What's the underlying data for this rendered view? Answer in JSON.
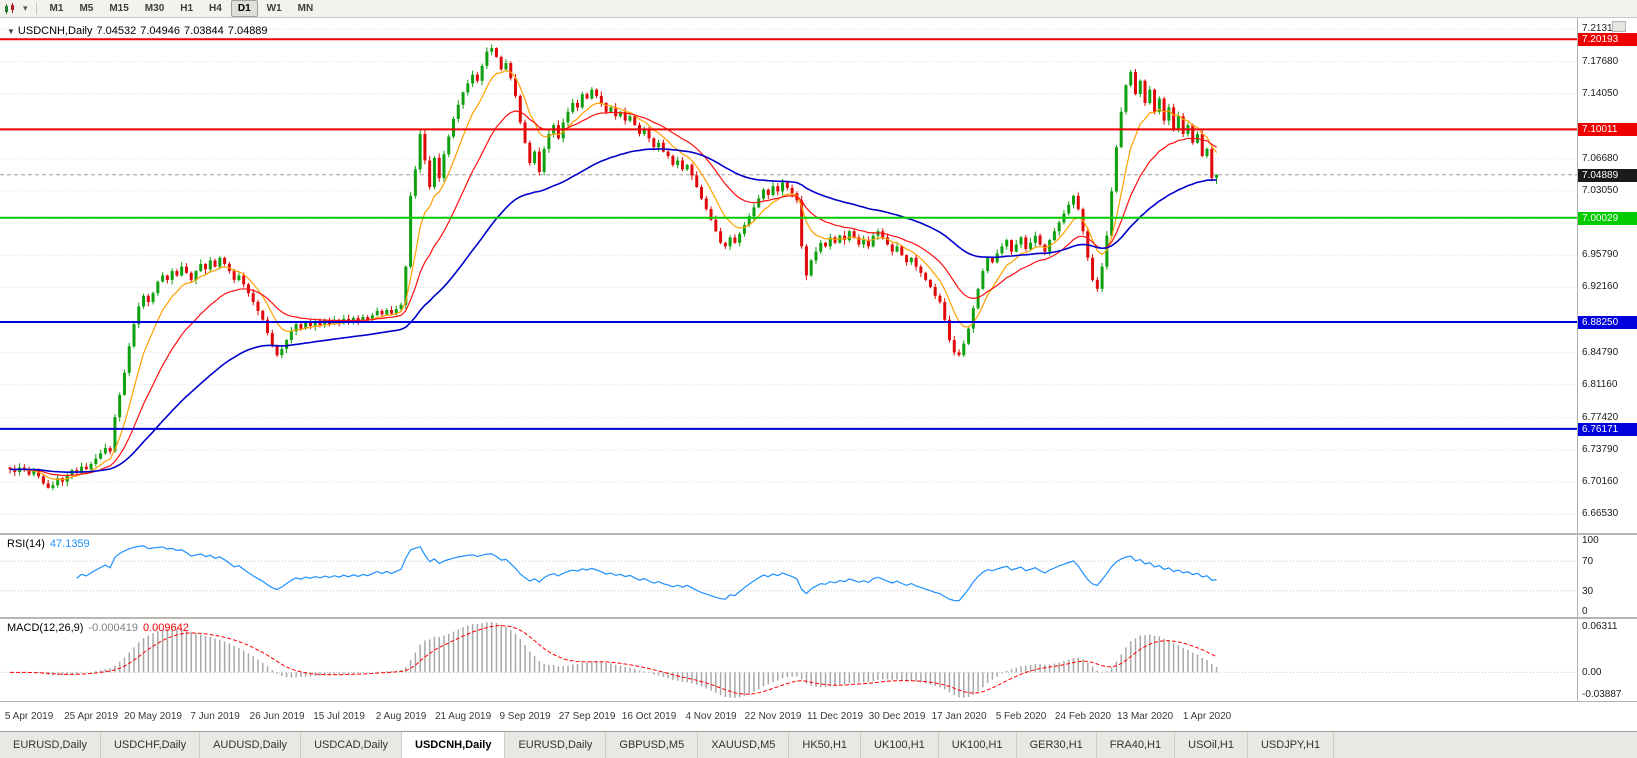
{
  "toolbar": {
    "timeframes": [
      "M1",
      "M5",
      "M15",
      "M30",
      "H1",
      "H4",
      "D1",
      "W1",
      "MN"
    ],
    "active_timeframe": "D1"
  },
  "chart_data": {
    "type": "candlestick",
    "symbol": "USDCNH",
    "timeframe": "Daily",
    "title": "USDCNH,Daily",
    "ohlc_labels": {
      "open": "7.04532",
      "high": "7.04946",
      "low": "7.03844",
      "close": "7.04889"
    },
    "last_ohlc": [
      7.04532,
      7.04946,
      7.03844,
      7.04889
    ],
    "closes": [
      6.716,
      6.713,
      6.718,
      6.715,
      6.71,
      6.714,
      6.708,
      6.7,
      6.695,
      6.698,
      6.706,
      6.702,
      6.709,
      6.715,
      6.712,
      6.719,
      6.716,
      6.722,
      6.728,
      6.734,
      6.74,
      6.736,
      6.775,
      6.8,
      6.825,
      6.855,
      6.88,
      6.9,
      6.912,
      6.905,
      6.915,
      6.928,
      6.935,
      6.93,
      6.94,
      6.935,
      6.945,
      6.938,
      6.93,
      6.94,
      6.948,
      6.942,
      6.952,
      6.945,
      6.955,
      6.948,
      6.94,
      6.93,
      6.935,
      6.925,
      6.915,
      6.905,
      6.895,
      6.885,
      6.87,
      6.855,
      6.845,
      6.852,
      6.862,
      6.872,
      6.88,
      6.875,
      6.882,
      6.878,
      6.883,
      6.879,
      6.884,
      6.88,
      6.885,
      6.881,
      6.886,
      6.882,
      6.887,
      6.883,
      6.888,
      6.885,
      6.89,
      6.895,
      6.891,
      6.896,
      6.892,
      6.897,
      6.902,
      6.945,
      7.025,
      7.055,
      7.095,
      7.065,
      7.035,
      7.068,
      7.045,
      7.072,
      7.092,
      7.112,
      7.128,
      7.142,
      7.152,
      7.162,
      7.155,
      7.172,
      7.188,
      7.192,
      7.182,
      7.168,
      7.175,
      7.158,
      7.138,
      7.108,
      7.085,
      7.062,
      7.075,
      7.052,
      7.078,
      7.095,
      7.105,
      7.09,
      7.108,
      7.12,
      7.13,
      7.125,
      7.14,
      7.135,
      7.145,
      7.138,
      7.13,
      7.12,
      7.125,
      7.115,
      7.12,
      7.11,
      7.115,
      7.105,
      7.095,
      7.1,
      7.09,
      7.08,
      7.085,
      7.075,
      7.07,
      7.06,
      7.065,
      7.055,
      7.06,
      7.048,
      7.035,
      7.022,
      7.01,
      6.998,
      6.985,
      6.972,
      6.968,
      6.978,
      6.972,
      6.982,
      6.992,
      7.002,
      7.012,
      7.022,
      7.032,
      7.026,
      7.036,
      7.03,
      7.04,
      7.034,
      7.028,
      7.02,
      6.968,
      6.935,
      6.952,
      6.962,
      6.972,
      6.968,
      6.978,
      6.972,
      6.98,
      6.975,
      6.985,
      6.978,
      6.97,
      6.975,
      6.968,
      6.98,
      6.985,
      6.978,
      6.97,
      6.962,
      6.968,
      6.958,
      6.95,
      6.955,
      6.945,
      6.938,
      6.93,
      6.922,
      6.912,
      6.905,
      6.885,
      6.862,
      6.848,
      6.845,
      6.858,
      6.875,
      6.898,
      6.92,
      6.94,
      6.955,
      6.95,
      6.96,
      6.968,
      6.975,
      6.962,
      6.97,
      6.978,
      6.965,
      6.972,
      6.98,
      6.97,
      6.962,
      6.975,
      6.985,
      6.995,
      7.005,
      7.015,
      7.025,
      7.01,
      6.985,
      6.955,
      6.93,
      6.92,
      6.945,
      6.98,
      7.03,
      7.08,
      7.12,
      7.15,
      7.165,
      7.14,
      7.155,
      7.13,
      7.145,
      7.12,
      7.135,
      7.11,
      7.125,
      7.1,
      7.115,
      7.095,
      7.105,
      7.085,
      7.095,
      7.07,
      7.078,
      7.045,
      7.04889
    ],
    "x_labels": [
      "5 Apr 2019",
      "25 Apr 2019",
      "20 May 2019",
      "7 Jun 2019",
      "26 Jun 2019",
      "15 Jul 2019",
      "2 Aug 2019",
      "21 Aug 2019",
      "9 Sep 2019",
      "27 Sep 2019",
      "16 Oct 2019",
      "4 Nov 2019",
      "22 Nov 2019",
      "11 Dec 2019",
      "30 Dec 2019",
      "17 Jan 2020",
      "5 Feb 2020",
      "24 Feb 2020",
      "13 Mar 2020",
      "1 Apr 2020"
    ],
    "x_label_first_index": 4,
    "x_label_step": 13,
    "price_axis": {
      "min": 6.644,
      "max": 7.226,
      "ticks": [
        "7.21310",
        "7.17680",
        "7.14050",
        "7.06680",
        "7.03050",
        "6.99420",
        "6.95790",
        "6.92160",
        "6.84790",
        "6.81160",
        "6.77420",
        "6.73790",
        "6.70160",
        "6.66530"
      ]
    },
    "levels": [
      {
        "value": 7.20193,
        "label": "7.20193",
        "color": "#ee0000"
      },
      {
        "value": 7.10011,
        "label": "7.10011",
        "color": "#ee0000"
      },
      {
        "value": 7.00029,
        "label": "7.00029",
        "color": "#00cc00"
      },
      {
        "value": 6.8825,
        "label": "6.88250",
        "color": "#0000dd"
      },
      {
        "value": 6.76171,
        "label": "6.76171",
        "color": "#0000dd"
      }
    ],
    "current": {
      "value": 7.04889,
      "label": "7.04889",
      "badge_color": "#1a1a1a"
    },
    "candle_colors": {
      "up": "#0fa00f",
      "down": "#e00808"
    },
    "moving_averages": [
      {
        "period": 8,
        "color": "#ffa000",
        "width": 1.2
      },
      {
        "period": 20,
        "color": "#ff1010",
        "width": 1.2
      },
      {
        "period": 55,
        "color": "#0000cd",
        "width": 1.6
      }
    ],
    "indicators": [
      {
        "name": "RSI",
        "label": "RSI(14)",
        "value": "47.1359",
        "color": "#1e90ff",
        "range": [
          0,
          100
        ],
        "axis_ticks": [
          "100",
          "70",
          "30",
          "0"
        ],
        "guides": [
          70,
          30
        ]
      },
      {
        "name": "MACD",
        "label": "MACD(12,26,9)",
        "main_value": "-0.000419",
        "signal_value": "0.009642",
        "main_color": "#a8a8a8",
        "signal_color": "#ff0000",
        "axis_ticks": [
          "0.06311",
          "0.00",
          "-0.03887"
        ]
      }
    ]
  },
  "tabbar": {
    "tabs": [
      "EURUSD,Daily",
      "USDCHF,Daily",
      "AUDUSD,Daily",
      "USDCAD,Daily",
      "USDCNH,Daily",
      "EURUSD,Daily",
      "GBPUSD,M5",
      "XAUUSD,M5",
      "HK50,H1",
      "UK100,H1",
      "UK100,H1",
      "GER30,H1",
      "FRA40,H1",
      "USOil,H1",
      "USDJPY,H1"
    ],
    "active_index": 4
  }
}
